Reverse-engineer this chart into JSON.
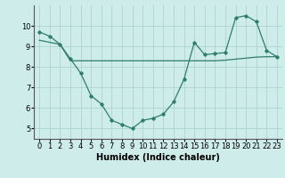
{
  "x": [
    0,
    1,
    2,
    3,
    4,
    5,
    6,
    7,
    8,
    9,
    10,
    11,
    12,
    13,
    14,
    15,
    16,
    17,
    18,
    19,
    20,
    21,
    22,
    23
  ],
  "y_curve": [
    9.7,
    9.5,
    9.1,
    8.4,
    7.7,
    6.6,
    6.2,
    5.4,
    5.2,
    5.0,
    5.4,
    5.5,
    5.7,
    6.3,
    7.4,
    9.2,
    8.6,
    8.65,
    8.7,
    10.4,
    10.5,
    10.2,
    8.8,
    8.5
  ],
  "y_line": [
    9.3,
    9.2,
    9.1,
    8.3,
    8.3,
    8.3,
    8.3,
    8.3,
    8.3,
    8.3,
    8.3,
    8.3,
    8.3,
    8.3,
    8.3,
    8.3,
    8.3,
    8.3,
    8.33,
    8.38,
    8.43,
    8.48,
    8.5,
    8.5
  ],
  "color": "#2e7d6e",
  "bg_color": "#ceecea",
  "grid_color": "#aed4d0",
  "xlabel": "Humidex (Indice chaleur)",
  "ylim": [
    4.5,
    11.0
  ],
  "xlim": [
    -0.5,
    23.5
  ],
  "yticks": [
    5,
    6,
    7,
    8,
    9,
    10
  ],
  "xticks": [
    0,
    1,
    2,
    3,
    4,
    5,
    6,
    7,
    8,
    9,
    10,
    11,
    12,
    13,
    14,
    15,
    16,
    17,
    18,
    19,
    20,
    21,
    22,
    23
  ],
  "tick_fontsize": 6.0,
  "xlabel_fontsize": 7.0
}
